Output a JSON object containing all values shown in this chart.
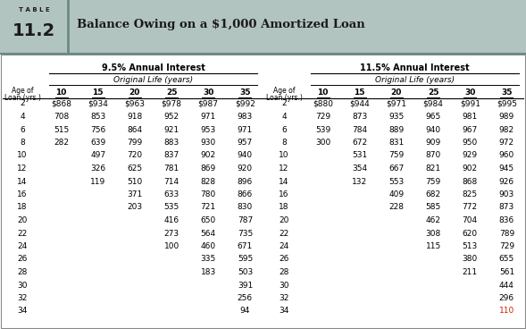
{
  "title_table": "T A B L E",
  "title_number": "11.2",
  "title_main": "Balance Owing on a $1,000 Amortized Loan",
  "header_bg": "#b2c4c0",
  "section1_label": "9.5% Annual Interest",
  "section2_label": "11.5% Annual Interest",
  "subsection_label": "Original Life (years)",
  "col_headers": [
    "10",
    "15",
    "20",
    "25",
    "30",
    "35"
  ],
  "age_label_line1": "Age of",
  "age_label_line2": "Loan (yrs.)",
  "ages": [
    2,
    4,
    6,
    8,
    10,
    12,
    14,
    16,
    18,
    20,
    22,
    24,
    26,
    28,
    30,
    32,
    34
  ],
  "data_95": [
    [
      "$868",
      "$934",
      "$963",
      "$978",
      "$987",
      "$992"
    ],
    [
      "708",
      "853",
      "918",
      "952",
      "971",
      "983"
    ],
    [
      "515",
      "756",
      "864",
      "921",
      "953",
      "971"
    ],
    [
      "282",
      "639",
      "799",
      "883",
      "930",
      "957"
    ],
    [
      "",
      "497",
      "720",
      "837",
      "902",
      "940"
    ],
    [
      "",
      "326",
      "625",
      "781",
      "869",
      "920"
    ],
    [
      "",
      "119",
      "510",
      "714",
      "828",
      "896"
    ],
    [
      "",
      "",
      "371",
      "633",
      "780",
      "866"
    ],
    [
      "",
      "",
      "203",
      "535",
      "721",
      "830"
    ],
    [
      "",
      "",
      "",
      "416",
      "650",
      "787"
    ],
    [
      "",
      "",
      "",
      "273",
      "564",
      "735"
    ],
    [
      "",
      "",
      "",
      "100",
      "460",
      "671"
    ],
    [
      "",
      "",
      "",
      "",
      "335",
      "595"
    ],
    [
      "",
      "",
      "",
      "",
      "183",
      "503"
    ],
    [
      "",
      "",
      "",
      "",
      "",
      "391"
    ],
    [
      "",
      "",
      "",
      "",
      "",
      "256"
    ],
    [
      "",
      "",
      "",
      "",
      "",
      "94"
    ]
  ],
  "data_115": [
    [
      "$880",
      "$944",
      "$971",
      "$984",
      "$991",
      "$995"
    ],
    [
      "729",
      "873",
      "935",
      "965",
      "981",
      "989"
    ],
    [
      "539",
      "784",
      "889",
      "940",
      "967",
      "982"
    ],
    [
      "300",
      "672",
      "831",
      "909",
      "950",
      "972"
    ],
    [
      "",
      "531",
      "759",
      "870",
      "929",
      "960"
    ],
    [
      "",
      "354",
      "667",
      "821",
      "902",
      "945"
    ],
    [
      "",
      "132",
      "553",
      "759",
      "868",
      "926"
    ],
    [
      "",
      "",
      "409",
      "682",
      "825",
      "903"
    ],
    [
      "",
      "",
      "228",
      "585",
      "772",
      "873"
    ],
    [
      "",
      "",
      "",
      "462",
      "704",
      "836"
    ],
    [
      "",
      "",
      "",
      "308",
      "620",
      "789"
    ],
    [
      "",
      "",
      "",
      "115",
      "513",
      "729"
    ],
    [
      "",
      "",
      "",
      "",
      "380",
      "655"
    ],
    [
      "",
      "",
      "",
      "",
      "211",
      "561"
    ],
    [
      "",
      "",
      "",
      "",
      "",
      "444"
    ],
    [
      "",
      "",
      "",
      "",
      "",
      "296"
    ],
    [
      "",
      "",
      "",
      "",
      "",
      "110"
    ]
  ],
  "highlight_color": "#cc2200",
  "border_color": "#888888",
  "header_divider_color": "#6a8a84",
  "figw": 5.89,
  "figh": 3.68,
  "dpi": 100
}
